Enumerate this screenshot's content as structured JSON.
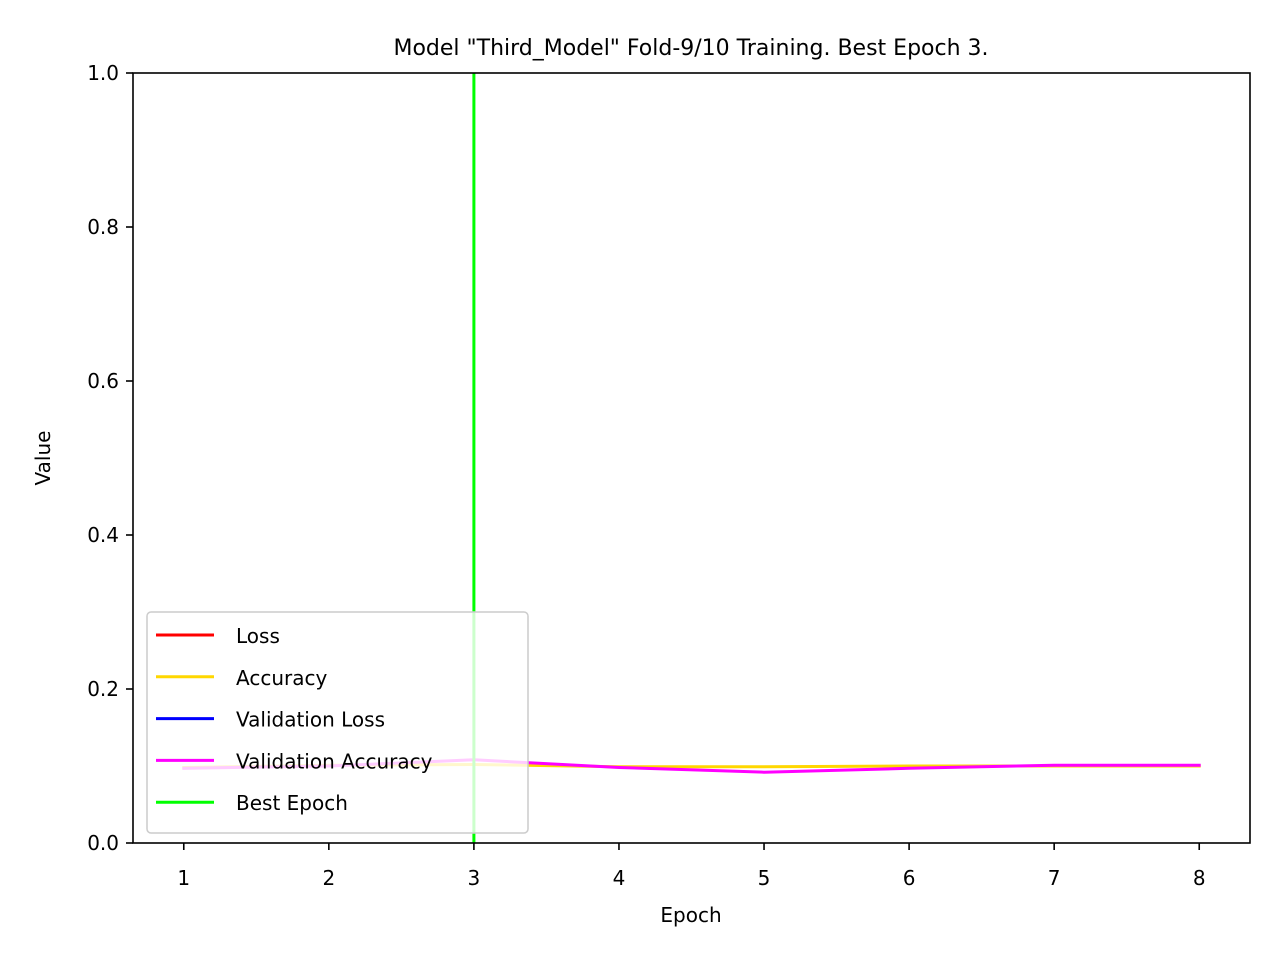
{
  "chart_data": {
    "type": "line",
    "title": "Model \"Third_Model\" Fold-9/10 Training. Best Epoch 3.",
    "xlabel": "Epoch",
    "ylabel": "Value",
    "x": [
      1,
      2,
      3,
      4,
      5,
      6,
      7,
      8
    ],
    "xlim": [
      0.65,
      8.35
    ],
    "ylim": [
      0.0,
      1.0
    ],
    "xticks": [
      "1",
      "2",
      "3",
      "4",
      "5",
      "6",
      "7",
      "8"
    ],
    "yticks": [
      "0.0",
      "0.2",
      "0.4",
      "0.6",
      "0.8",
      "1.0"
    ],
    "grid": false,
    "legend_position": "lower-left",
    "series": [
      {
        "name": "Loss",
        "color": "#ff0000",
        "values": [
          null,
          null,
          null,
          null,
          null,
          null,
          null,
          null
        ]
      },
      {
        "name": "Accuracy",
        "color": "#ffd700",
        "values": [
          0.098,
          0.101,
          0.102,
          0.099,
          0.099,
          0.1,
          0.1,
          0.1
        ]
      },
      {
        "name": "Validation Loss",
        "color": "#0000ff",
        "values": [
          null,
          null,
          null,
          null,
          null,
          null,
          null,
          null
        ]
      },
      {
        "name": "Validation  Accuracy",
        "color": "#ff00ff",
        "values": [
          0.097,
          0.1,
          0.108,
          0.098,
          0.092,
          0.097,
          0.101,
          0.101
        ]
      }
    ],
    "best_epoch": {
      "name": "Best Epoch",
      "color": "#00ff00",
      "x": 3
    }
  }
}
